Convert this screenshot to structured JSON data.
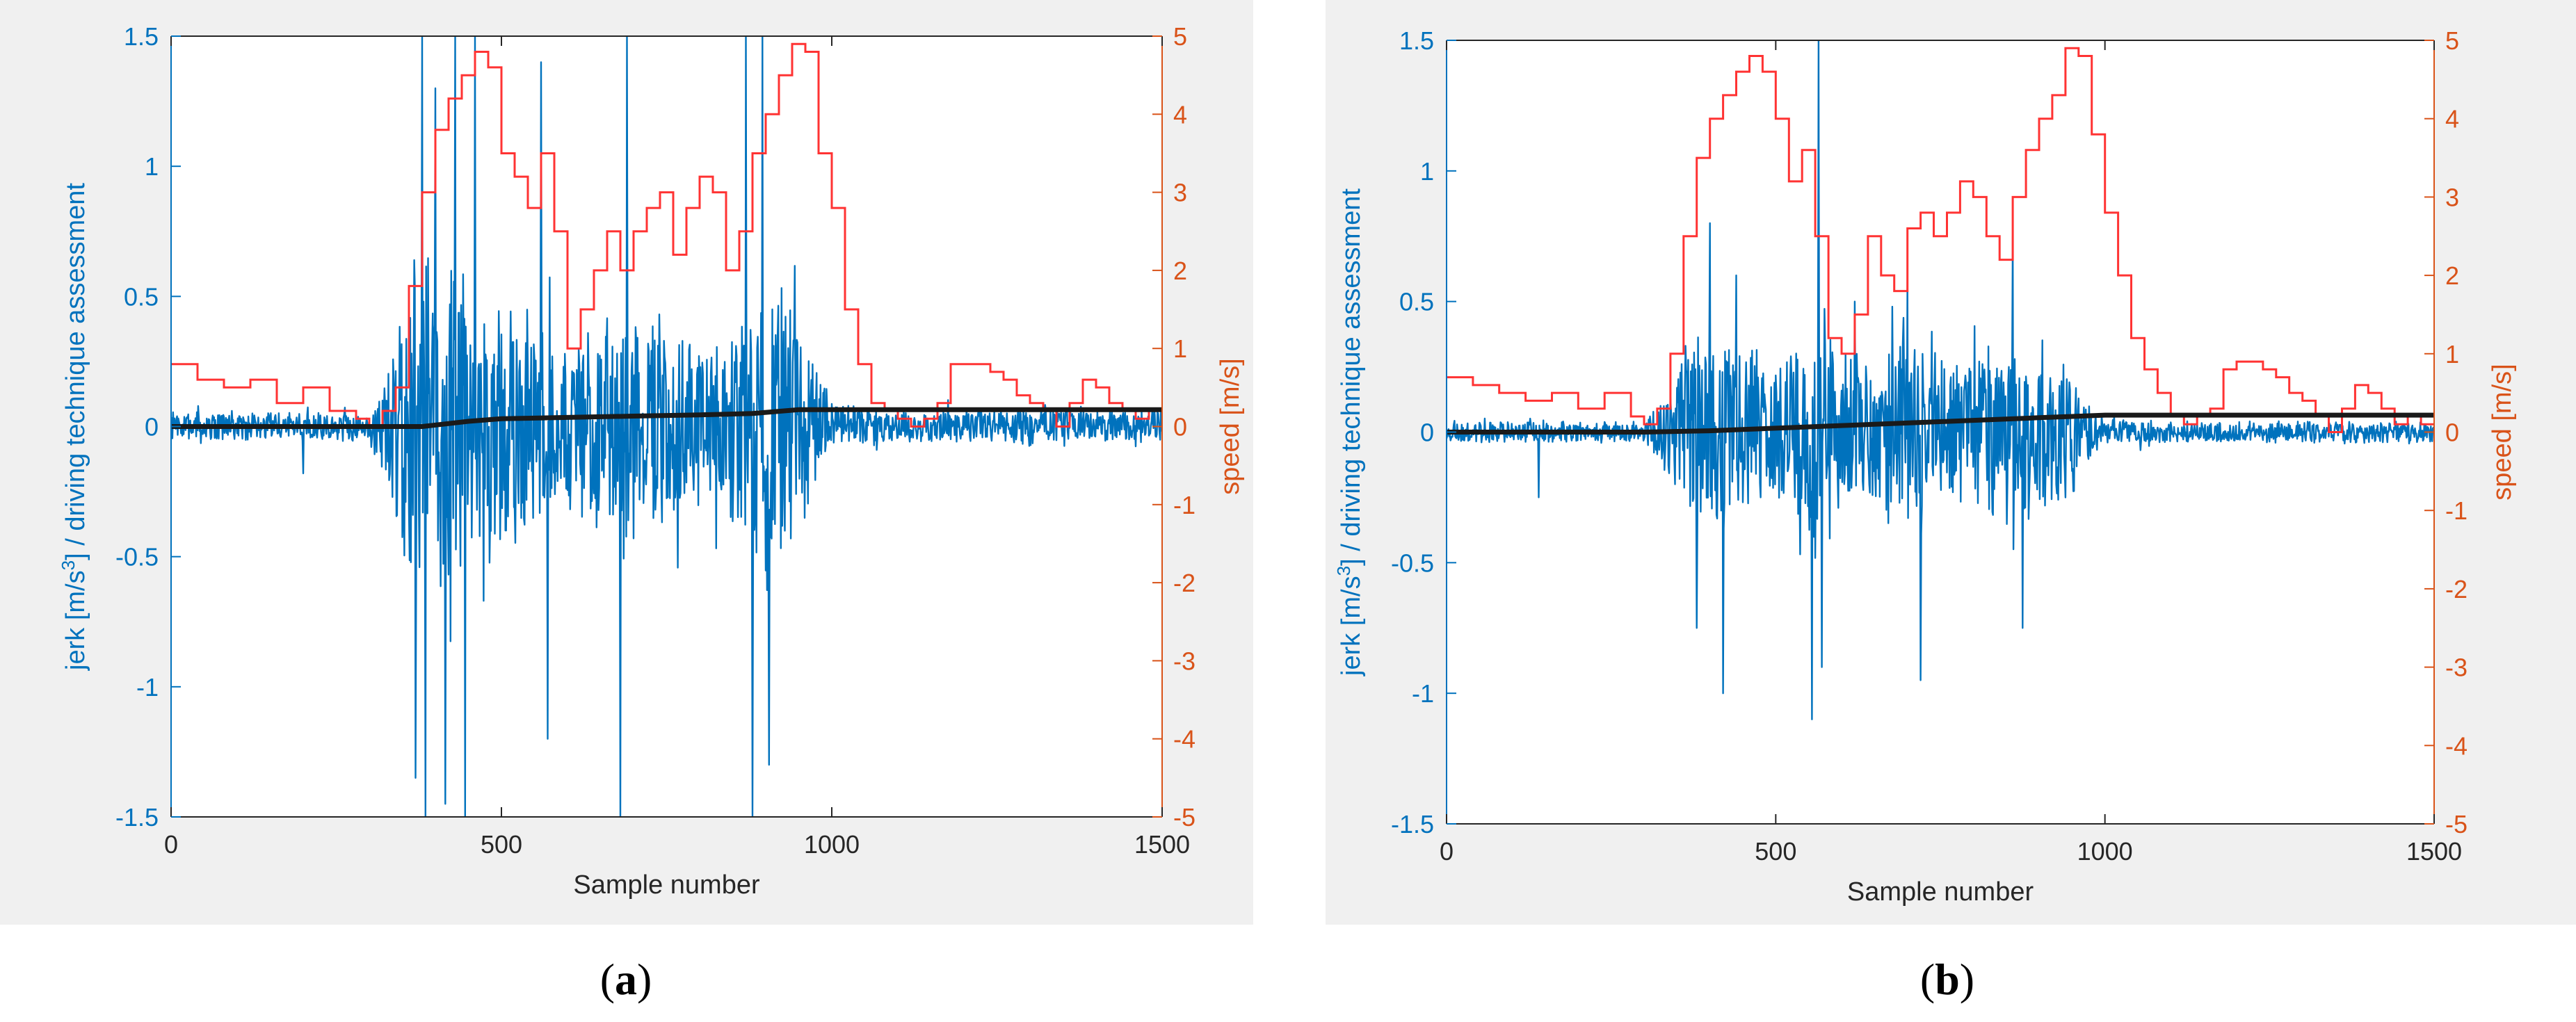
{
  "chart_data": [
    {
      "type": "line",
      "panel": "a",
      "caption_open": "(",
      "caption_letter": "a",
      "caption_close": ")",
      "xlabel": "Sample number",
      "ylabel_left_prefix": "jerk [m/s",
      "ylabel_left_sup": "3",
      "ylabel_left_suffix": "] / driving technique assessment",
      "ylabel_right": "speed [m/s]",
      "xlim": [
        0,
        1500
      ],
      "ylim_left": [
        -1.5,
        1.5
      ],
      "ylim_right": [
        -5,
        5
      ],
      "xticks": [
        "0",
        "500",
        "1000",
        "1500"
      ],
      "yticks_left": [
        "-1.5",
        "-1",
        "-0.5",
        "0",
        "0.5",
        "1",
        "1.5"
      ],
      "yticks_right": [
        "-5",
        "-4",
        "-3",
        "-2",
        "-1",
        "0",
        "1",
        "2",
        "3",
        "4",
        "5"
      ],
      "colors": {
        "jerk": "#0072BD",
        "speed": "#FF3333",
        "assessment": "#1a1a1a",
        "left_axis": "#0072BD",
        "right_axis": "#D95319"
      },
      "series": [
        {
          "name": "speed",
          "axis": "right",
          "style": "step",
          "x": [
            0,
            40,
            80,
            120,
            160,
            200,
            240,
            280,
            300,
            320,
            340,
            360,
            380,
            400,
            420,
            440,
            460,
            480,
            500,
            520,
            540,
            560,
            580,
            600,
            620,
            640,
            660,
            680,
            700,
            720,
            740,
            760,
            780,
            800,
            820,
            840,
            860,
            880,
            900,
            920,
            940,
            960,
            980,
            1000,
            1020,
            1040,
            1060,
            1080,
            1100,
            1120,
            1140,
            1160,
            1180,
            1200,
            1220,
            1240,
            1260,
            1280,
            1300,
            1320,
            1340,
            1360,
            1380,
            1400,
            1420,
            1440,
            1460,
            1480,
            1500
          ],
          "values": [
            0.8,
            0.6,
            0.5,
            0.6,
            0.3,
            0.5,
            0.2,
            0.1,
            0.0,
            0.2,
            0.5,
            1.8,
            3.0,
            3.8,
            4.2,
            4.5,
            4.8,
            4.6,
            3.5,
            3.2,
            2.8,
            3.5,
            2.5,
            1.0,
            1.5,
            2.0,
            2.5,
            2.0,
            2.5,
            2.8,
            3.0,
            2.2,
            2.8,
            3.2,
            3.0,
            2.0,
            2.5,
            3.5,
            4.0,
            4.5,
            4.9,
            4.8,
            3.5,
            2.8,
            1.5,
            0.8,
            0.3,
            0.2,
            0.1,
            0.0,
            0.1,
            0.3,
            0.8,
            0.8,
            0.8,
            0.7,
            0.6,
            0.4,
            0.3,
            0.2,
            0.0,
            0.3,
            0.6,
            0.5,
            0.3,
            0.2,
            0.1,
            0.2,
            0.2
          ]
        },
        {
          "name": "driving technique assessment",
          "axis": "left",
          "style": "line",
          "x": [
            0,
            300,
            380,
            450,
            500,
            600,
            700,
            800,
            880,
            950,
            1000,
            1100,
            1200,
            1300,
            1400,
            1500
          ],
          "values": [
            0.0,
            0.0,
            0.0,
            0.02,
            0.03,
            0.035,
            0.04,
            0.045,
            0.05,
            0.065,
            0.065,
            0.065,
            0.065,
            0.065,
            0.065,
            0.065
          ]
        },
        {
          "name": "jerk",
          "axis": "left",
          "style": "noise",
          "seed": 7,
          "envelope_x": [
            0,
            300,
            340,
            360,
            380,
            400,
            440,
            480,
            520,
            560,
            600,
            640,
            680,
            720,
            760,
            800,
            840,
            880,
            900,
            920,
            960,
            1000,
            1100,
            1200,
            1300,
            1400,
            1500
          ],
          "envelope": [
            0.08,
            0.08,
            0.5,
            0.9,
            1.1,
            1.0,
            1.0,
            0.8,
            0.7,
            0.6,
            0.5,
            0.6,
            0.7,
            0.6,
            0.55,
            0.5,
            0.5,
            0.7,
            1.0,
            1.0,
            0.55,
            0.15,
            0.1,
            0.1,
            0.1,
            0.1,
            0.1
          ],
          "spikes": [
            {
              "x": 370,
              "value": -1.35
            },
            {
              "x": 380,
              "value": 1.5
            },
            {
              "x": 385,
              "value": -1.5
            },
            {
              "x": 400,
              "value": 1.3
            },
            {
              "x": 415,
              "value": -1.45
            },
            {
              "x": 430,
              "value": 1.5
            },
            {
              "x": 445,
              "value": -1.5
            },
            {
              "x": 460,
              "value": 1.5
            },
            {
              "x": 560,
              "value": 1.4
            },
            {
              "x": 570,
              "value": -1.2
            },
            {
              "x": 680,
              "value": -1.5
            },
            {
              "x": 690,
              "value": 1.5
            },
            {
              "x": 870,
              "value": 1.5
            },
            {
              "x": 880,
              "value": -1.5
            },
            {
              "x": 895,
              "value": 1.5
            },
            {
              "x": 905,
              "value": -1.3
            },
            {
              "x": 200,
              "value": -0.18
            }
          ]
        }
      ]
    },
    {
      "type": "line",
      "panel": "b",
      "caption_open": "(",
      "caption_letter": "b",
      "caption_close": ")",
      "xlabel": "Sample number",
      "ylabel_left_prefix": "jerk [m/s",
      "ylabel_left_sup": "3",
      "ylabel_left_suffix": "] / driving technique assessment",
      "ylabel_right": "speed [m/s]",
      "xlim": [
        0,
        1500
      ],
      "ylim_left": [
        -1.5,
        1.5
      ],
      "ylim_right": [
        -5,
        5
      ],
      "xticks": [
        "0",
        "500",
        "1000",
        "1500"
      ],
      "yticks_left": [
        "-1.5",
        "-1",
        "-0.5",
        "0",
        "0.5",
        "1",
        "1.5"
      ],
      "yticks_right": [
        "-5",
        "-4",
        "-3",
        "-2",
        "-1",
        "0",
        "1",
        "2",
        "3",
        "4",
        "5"
      ],
      "colors": {
        "jerk": "#0072BD",
        "speed": "#FF3333",
        "assessment": "#1a1a1a",
        "left_axis": "#0072BD",
        "right_axis": "#D95319"
      },
      "series": [
        {
          "name": "speed",
          "axis": "right",
          "style": "step",
          "x": [
            0,
            40,
            80,
            120,
            160,
            200,
            240,
            280,
            300,
            320,
            340,
            360,
            380,
            400,
            420,
            440,
            460,
            480,
            500,
            520,
            540,
            560,
            580,
            600,
            620,
            640,
            660,
            680,
            700,
            720,
            740,
            760,
            780,
            800,
            820,
            840,
            860,
            880,
            900,
            920,
            940,
            960,
            980,
            1000,
            1020,
            1040,
            1060,
            1080,
            1100,
            1120,
            1140,
            1160,
            1180,
            1200,
            1220,
            1240,
            1260,
            1280,
            1300,
            1320,
            1340,
            1360,
            1380,
            1400,
            1420,
            1440,
            1460,
            1480,
            1500
          ],
          "values": [
            0.7,
            0.6,
            0.5,
            0.4,
            0.5,
            0.3,
            0.5,
            0.2,
            0.1,
            0.3,
            1.0,
            2.5,
            3.5,
            4.0,
            4.3,
            4.6,
            4.8,
            4.6,
            4.0,
            3.2,
            3.6,
            2.5,
            1.2,
            1.0,
            1.5,
            2.5,
            2.0,
            1.8,
            2.6,
            2.8,
            2.5,
            2.8,
            3.2,
            3.0,
            2.5,
            2.2,
            3.0,
            3.6,
            4.0,
            4.3,
            4.9,
            4.8,
            3.8,
            2.8,
            2.0,
            1.2,
            0.8,
            0.5,
            0.2,
            0.1,
            0.2,
            0.3,
            0.8,
            0.9,
            0.9,
            0.8,
            0.7,
            0.5,
            0.4,
            0.2,
            0.0,
            0.3,
            0.6,
            0.5,
            0.3,
            0.1,
            0.2,
            0.1,
            0.1
          ]
        },
        {
          "name": "driving technique assessment",
          "axis": "left",
          "style": "line",
          "x": [
            0,
            300,
            400,
            500,
            600,
            700,
            800,
            900,
            950,
            1000,
            1100,
            1200,
            1300,
            1400,
            1500
          ],
          "values": [
            0.0,
            0.0,
            0.005,
            0.015,
            0.025,
            0.035,
            0.045,
            0.055,
            0.06,
            0.065,
            0.065,
            0.065,
            0.065,
            0.065,
            0.065
          ]
        },
        {
          "name": "jerk",
          "axis": "left",
          "style": "noise",
          "seed": 19,
          "envelope_x": [
            0,
            300,
            340,
            360,
            380,
            420,
            460,
            500,
            540,
            560,
            600,
            640,
            680,
            700,
            740,
            780,
            820,
            860,
            900,
            940,
            980,
            1000,
            1100,
            1200,
            1300,
            1400,
            1500
          ],
          "envelope": [
            0.06,
            0.06,
            0.3,
            0.5,
            0.6,
            0.55,
            0.5,
            0.45,
            0.5,
            0.7,
            0.5,
            0.45,
            0.5,
            0.6,
            0.5,
            0.45,
            0.5,
            0.55,
            0.5,
            0.4,
            0.15,
            0.08,
            0.06,
            0.06,
            0.06,
            0.06,
            0.06
          ],
          "spikes": [
            {
              "x": 380,
              "value": -0.75
            },
            {
              "x": 400,
              "value": 0.8
            },
            {
              "x": 420,
              "value": -1.0
            },
            {
              "x": 440,
              "value": 0.6
            },
            {
              "x": 555,
              "value": -1.1
            },
            {
              "x": 565,
              "value": 1.5
            },
            {
              "x": 570,
              "value": -0.9
            },
            {
              "x": 620,
              "value": 0.5
            },
            {
              "x": 700,
              "value": 0.6
            },
            {
              "x": 720,
              "value": -0.95
            },
            {
              "x": 860,
              "value": 0.75
            },
            {
              "x": 875,
              "value": -0.75
            },
            {
              "x": 140,
              "value": -0.25
            }
          ]
        }
      ]
    }
  ]
}
